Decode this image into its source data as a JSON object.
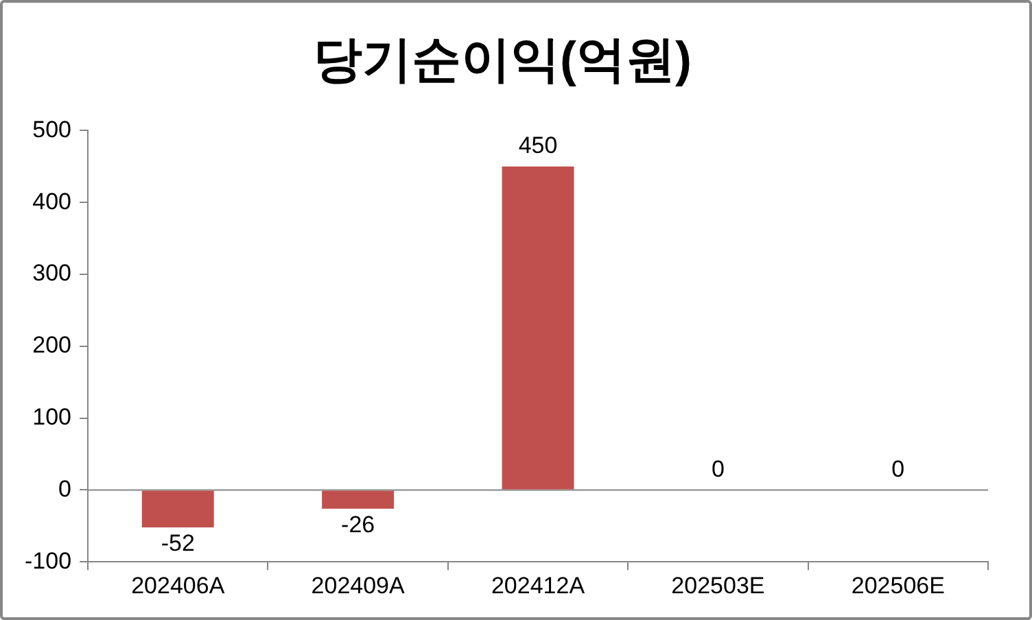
{
  "chart_data": {
    "type": "bar",
    "title": "당기순이익(억원)",
    "categories": [
      "202406A",
      "202409A",
      "202412A",
      "202503E",
      "202506E"
    ],
    "values": [
      -52,
      -26,
      450,
      0,
      0
    ],
    "color": "#c0504d",
    "ylim": [
      -100,
      500
    ],
    "yticks": [
      -100,
      0,
      100,
      200,
      300,
      400,
      500
    ],
    "grid": false,
    "ref_lines": [
      {
        "axis": "y",
        "value": 0,
        "color": "#868686"
      }
    ],
    "legend": false,
    "data_labels": true
  }
}
